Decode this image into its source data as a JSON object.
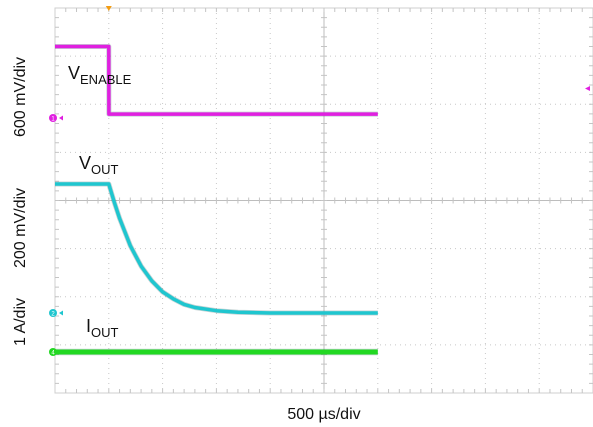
{
  "chart_data": {
    "type": "line",
    "x_units": "µs",
    "xlim": [
      -500,
      2500
    ],
    "grid": true,
    "xlabel": "500 µs/div",
    "trigger_position_us": 0,
    "channel_scales": [
      "600 mV/div",
      "200 mV/div",
      "1 A/div"
    ],
    "series": [
      {
        "name": "VENABLE",
        "label_main": "V",
        "label_sub": "ENABLE",
        "color": "#e020e0",
        "marker": "1",
        "scale": "600 mV/div",
        "x": [
          -500,
          0,
          1,
          2500
        ],
        "y": [
          1.45,
          1.45,
          0.08,
          0.08
        ]
      },
      {
        "name": "VOUT",
        "label_main": "V",
        "label_sub": "OUT",
        "color": "#1fc6cf",
        "marker": "2",
        "scale": "200 mV/div",
        "x": [
          -500,
          0,
          50,
          100,
          200,
          300,
          400,
          500,
          600,
          700,
          800,
          1000,
          1200,
          1500,
          2000,
          2500
        ],
        "y": [
          1.65,
          1.65,
          1.42,
          1.21,
          0.86,
          0.6,
          0.41,
          0.27,
          0.18,
          0.11,
          0.07,
          0.03,
          0.01,
          0.0,
          0.0,
          0.0
        ]
      },
      {
        "name": "IOUT",
        "label_main": "I",
        "label_sub": "OUT",
        "color": "#22d822",
        "marker": "4",
        "scale": "1 A/div",
        "x": [
          -500,
          2500
        ],
        "y": [
          0,
          0
        ]
      }
    ]
  }
}
